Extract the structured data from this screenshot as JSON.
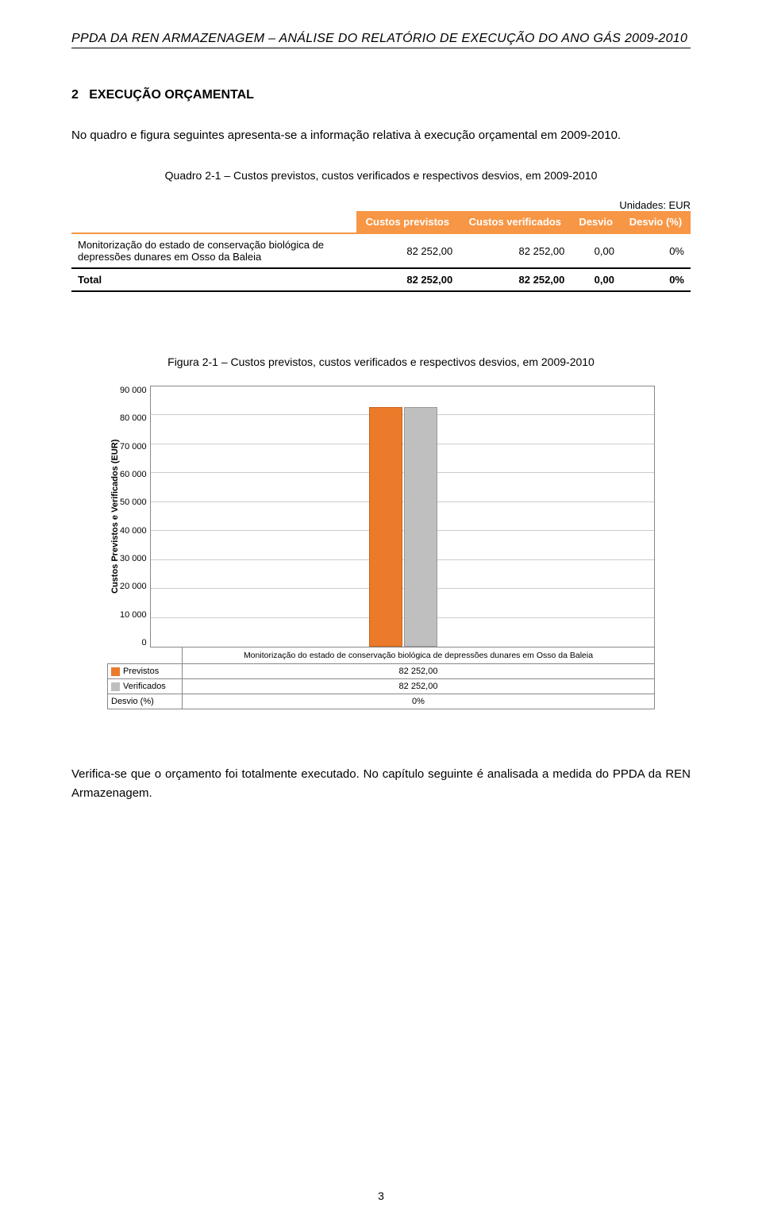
{
  "header": {
    "title": "PPDA DA REN ARMAZENAGEM – ANÁLISE DO RELATÓRIO DE EXECUÇÃO DO ANO GÁS 2009-2010"
  },
  "section": {
    "number": "2",
    "title": "EXECUÇÃO ORÇAMENTAL",
    "intro": "No quadro e figura seguintes apresenta-se a informação relativa à execução orçamental em 2009-2010."
  },
  "table": {
    "caption": "Quadro 2-1 – Custos previstos, custos verificados e respectivos desvios, em 2009-2010",
    "units_label": "Unidades: EUR",
    "headers": {
      "c1": "Custos previstos",
      "c2": "Custos verificados",
      "c3": "Desvio",
      "c4": "Desvio (%)"
    },
    "row": {
      "label": "Monitorização do estado de conservação biológica de depressões dunares em Osso da Baleia",
      "c1": "82 252,00",
      "c2": "82 252,00",
      "c3": "0,00",
      "c4": "0%"
    },
    "total": {
      "label": "Total",
      "c1": "82 252,00",
      "c2": "82 252,00",
      "c3": "0,00",
      "c4": "0%"
    }
  },
  "figure": {
    "caption": "Figura 2-1 – Custos previstos, custos verificados e respectivos desvios, em 2009-2010",
    "ylabel": "Custos Previstos e Verificados (EUR)",
    "ymax": 90000,
    "ytick_step": 10000,
    "yticks": [
      "90 000",
      "80 000",
      "70 000",
      "60 000",
      "50 000",
      "40 000",
      "30 000",
      "20 000",
      "10 000",
      "0"
    ],
    "xcat": "Monitorização do estado de conservação biológica de depressões dunares em Osso da Baleia",
    "series": {
      "previstos": {
        "label": "Previstos",
        "color": "#eb7a2a",
        "value": 82252,
        "value_text": "82 252,00"
      },
      "verificados": {
        "label": "Verificados",
        "color": "#bfbfbf",
        "value": 82252,
        "value_text": "82 252,00"
      },
      "desvio": {
        "label": "Desvio (%)",
        "value_text": "0%"
      }
    }
  },
  "closing": "Verifica-se que o orçamento foi totalmente executado. No capítulo seguinte é analisada a medida do PPDA da REN Armazenagem.",
  "page_number": "3"
}
